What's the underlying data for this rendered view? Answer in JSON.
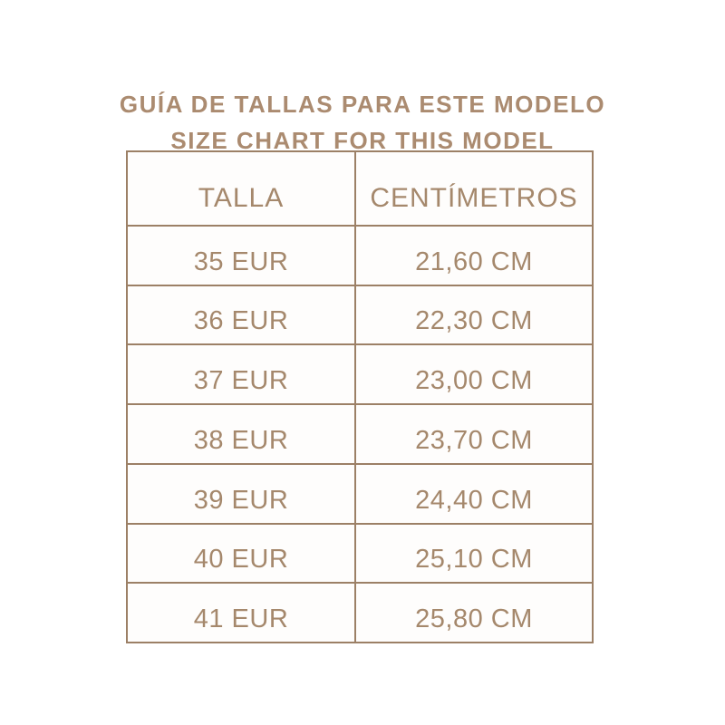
{
  "page": {
    "background": "#ffffff",
    "accent_text_color": "#ab8b70",
    "border_color": "#9c8066"
  },
  "title": {
    "line1": "GUÍA DE TALLAS PARA ESTE MODELO",
    "line2": "SIZE CHART FOR THIS MODEL"
  },
  "table": {
    "headers": [
      "TALLA",
      "CENTÍMETROS"
    ],
    "rows": [
      {
        "talla": "35 EUR",
        "cm": "21,60 CM"
      },
      {
        "talla": "36 EUR",
        "cm": "22,30 CM"
      },
      {
        "talla": "37 EUR",
        "cm": "23,00 CM"
      },
      {
        "talla": "38 EUR",
        "cm": "23,70 CM"
      },
      {
        "talla": "39 EUR",
        "cm": "24,40 CM"
      },
      {
        "talla": "40 EUR",
        "cm": "25,10 CM"
      },
      {
        "talla": "41 EUR",
        "cm": "25,80 CM"
      }
    ]
  },
  "chart_data": {
    "type": "table",
    "title": "GUÍA DE TALLAS PARA ESTE MODELO / SIZE CHART FOR THIS MODEL",
    "columns": [
      "TALLA",
      "CENTÍMETROS"
    ],
    "rows": [
      [
        "35 EUR",
        "21,60 CM"
      ],
      [
        "36 EUR",
        "22,30 CM"
      ],
      [
        "37 EUR",
        "23,00 CM"
      ],
      [
        "38 EUR",
        "23,70 CM"
      ],
      [
        "39 EUR",
        "24,40 CM"
      ],
      [
        "40 EUR",
        "25,10 CM"
      ],
      [
        "41 EUR",
        "25,80 CM"
      ]
    ]
  }
}
